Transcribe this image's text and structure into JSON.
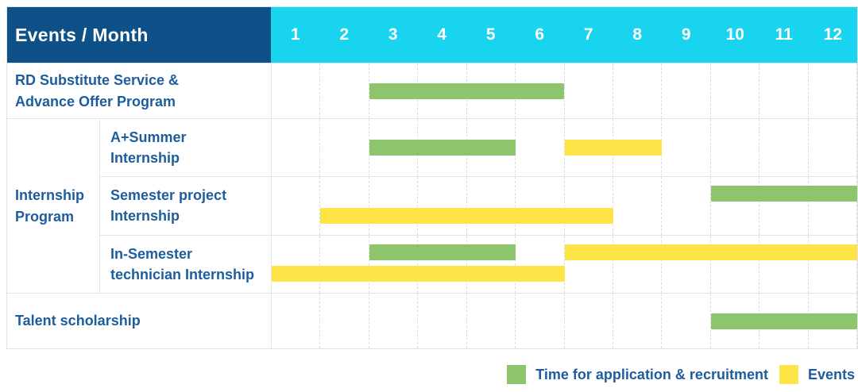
{
  "header": {
    "title": "Events / Month"
  },
  "colors": {
    "header_bg": "#0e5189",
    "months_bg": "#18d4ef",
    "label_text": "#1d5d9e",
    "application_green": "#8cc56b",
    "event_yellow": "#fde345"
  },
  "chart_data": {
    "type": "bar",
    "variant": "gantt-table",
    "title": "Events / Month",
    "xlabel": "Month",
    "x_range": [
      1,
      12
    ],
    "months": [
      "1",
      "2",
      "3",
      "4",
      "5",
      "6",
      "7",
      "8",
      "9",
      "10",
      "11",
      "12"
    ],
    "grid": "dashed-vertical",
    "legend_position": "bottom-right",
    "legend": [
      {
        "key": "application",
        "label": "Time for application & recruitment",
        "color": "#8cc56b"
      },
      {
        "key": "event",
        "label": "Events",
        "color": "#fde345"
      }
    ],
    "rows": [
      {
        "group": "",
        "label": "RD Substitute Service &\nAdvance Offer Program",
        "bars": [
          {
            "kind": "application",
            "start_month": 3,
            "end_month": 6,
            "lane": "center"
          }
        ]
      },
      {
        "group": "Internship\nProgram",
        "label": "A+Summer\nInternship",
        "bars": [
          {
            "kind": "application",
            "start_month": 3,
            "end_month": 5,
            "lane": "center"
          },
          {
            "kind": "event",
            "start_month": 7,
            "end_month": 8,
            "lane": "center"
          }
        ]
      },
      {
        "group": "Internship\nProgram",
        "label": "Semester project\nInternship",
        "bars": [
          {
            "kind": "application",
            "start_month": 10,
            "end_month": 12,
            "lane": "top"
          },
          {
            "kind": "event",
            "start_month": 2,
            "end_month": 7,
            "lane": "bottom"
          }
        ]
      },
      {
        "group": "Internship\nProgram",
        "label": "In-Semester\ntechnician Internship",
        "bars": [
          {
            "kind": "application",
            "start_month": 3,
            "end_month": 5,
            "lane": "top"
          },
          {
            "kind": "event",
            "start_month": 7,
            "end_month": 12,
            "lane": "top"
          },
          {
            "kind": "event",
            "start_month": 1,
            "end_month": 6,
            "lane": "bottom"
          }
        ]
      },
      {
        "group": "",
        "label": "Talent scholarship",
        "bars": [
          {
            "kind": "application",
            "start_month": 10,
            "end_month": 12,
            "lane": "center"
          }
        ]
      }
    ]
  }
}
